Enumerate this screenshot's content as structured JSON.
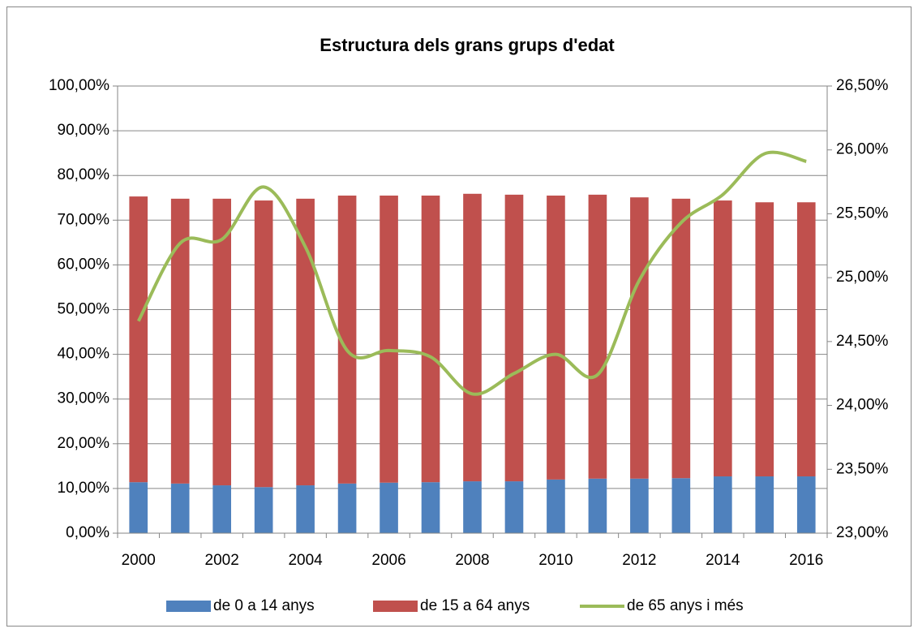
{
  "chart_data": {
    "type": "bar",
    "title": "Estructura dels grans grups d'edat",
    "categories": [
      "2000",
      null,
      "2002",
      null,
      "2004",
      null,
      "2006",
      null,
      "2008",
      null,
      "2010",
      null,
      "2012",
      null,
      "2014",
      null,
      "2016"
    ],
    "series": [
      {
        "name": "de 0 a 14 anys",
        "color": "#4f81bd",
        "type": "bar",
        "values": [
          11.4,
          11.1,
          10.7,
          10.3,
          10.7,
          11.1,
          11.3,
          11.4,
          11.6,
          11.6,
          12.0,
          12.2,
          12.2,
          12.3,
          12.7,
          12.7,
          12.7
        ]
      },
      {
        "name": "de 15 a 64 anys",
        "color": "#c0504d",
        "type": "bar",
        "values": [
          63.9,
          63.7,
          64.1,
          64.1,
          64.1,
          64.4,
          64.2,
          64.1,
          64.3,
          64.1,
          63.5,
          63.5,
          62.9,
          62.5,
          61.7,
          61.3,
          61.3
        ]
      },
      {
        "name": "de 65 anys i més",
        "color": "#9bbb59",
        "type": "line",
        "axis": "y2",
        "values": [
          24.66,
          25.27,
          25.3,
          25.71,
          25.24,
          24.43,
          24.43,
          24.38,
          24.09,
          24.25,
          24.4,
          24.24,
          24.98,
          25.43,
          25.65,
          25.97,
          25.91
        ]
      }
    ],
    "stacked": true,
    "ylim": [
      0,
      100
    ],
    "yticks": [
      {
        "value": 0,
        "label": "0,00%"
      },
      {
        "value": 10,
        "label": "10,00%"
      },
      {
        "value": 20,
        "label": "20,00%"
      },
      {
        "value": 30,
        "label": "30,00%"
      },
      {
        "value": 40,
        "label": "40,00%"
      },
      {
        "value": 50,
        "label": "50,00%"
      },
      {
        "value": 60,
        "label": "60,00%"
      },
      {
        "value": 70,
        "label": "70,00%"
      },
      {
        "value": 80,
        "label": "80,00%"
      },
      {
        "value": 90,
        "label": "90,00%"
      },
      {
        "value": 100,
        "label": "100,00%"
      }
    ],
    "y2lim": [
      23,
      26.5
    ],
    "y2ticks": [
      {
        "value": 23,
        "label": "23,00%"
      },
      {
        "value": 23.5,
        "label": "23,50%"
      },
      {
        "value": 24,
        "label": "24,00%"
      },
      {
        "value": 24.5,
        "label": "24,50%"
      },
      {
        "value": 25,
        "label": "25,00%"
      },
      {
        "value": 25.5,
        "label": "25,50%"
      },
      {
        "value": 26,
        "label": "26,00%"
      },
      {
        "value": 26.5,
        "label": "26,50%"
      }
    ],
    "grid": true,
    "legend": "bottom"
  }
}
